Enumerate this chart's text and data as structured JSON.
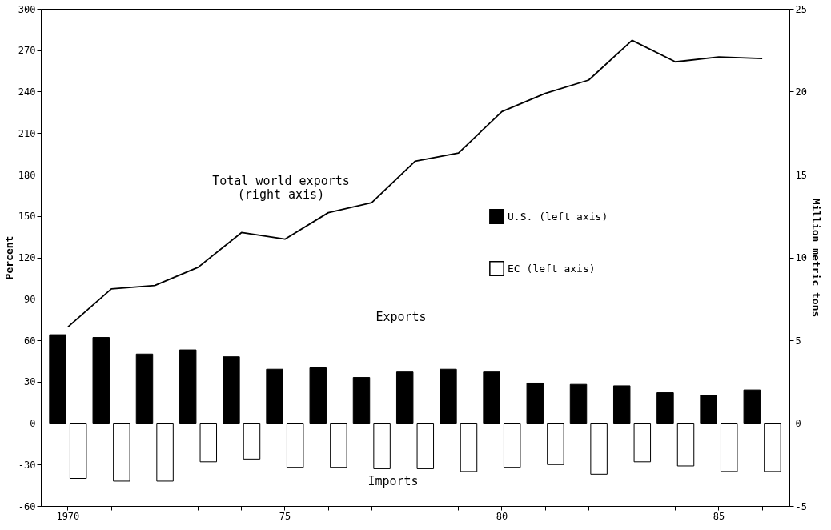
{
  "chart_data": {
    "type": "bar",
    "categories": [
      "1970",
      null,
      null,
      null,
      null,
      "75",
      null,
      null,
      null,
      null,
      "80",
      null,
      null,
      null,
      null,
      "85",
      null
    ],
    "ylabel": "Percent",
    "y2label": "Million metric tons",
    "ylim": [
      -60,
      300
    ],
    "yticks": [
      -60,
      -30,
      0,
      30,
      60,
      90,
      120,
      150,
      180,
      210,
      240,
      270,
      300
    ],
    "y2lim": [
      -5,
      25
    ],
    "y2ticks": [
      -5,
      0,
      5,
      10,
      15,
      20,
      25
    ],
    "series": [
      {
        "name": "U.S. (left axis)",
        "color": "#000000",
        "values": [
          64,
          62,
          50,
          53,
          48,
          39,
          40,
          33,
          37,
          39,
          37,
          29,
          28,
          27,
          22,
          20,
          24
        ]
      },
      {
        "name": "EC (left axis)",
        "color": "#ffffff",
        "values": [
          -40,
          -42,
          -42,
          -28,
          -26,
          -32,
          -32,
          -33,
          -33,
          -35,
          -32,
          -30,
          -37,
          -28,
          -31,
          -35,
          -35
        ]
      },
      {
        "name": "Total world exports\n(right axis)",
        "color": "#000000",
        "type": "line",
        "axis": "y2",
        "values": [
          5.8,
          8.1,
          8.3,
          9.4,
          11.5,
          11.1,
          12.7,
          13.3,
          15.8,
          16.3,
          18.8,
          19.9,
          20.7,
          23.1,
          21.8,
          22.1,
          22.0
        ]
      }
    ],
    "annotations": [
      "Exports",
      "Imports"
    ],
    "legend": "right",
    "grid": false
  }
}
